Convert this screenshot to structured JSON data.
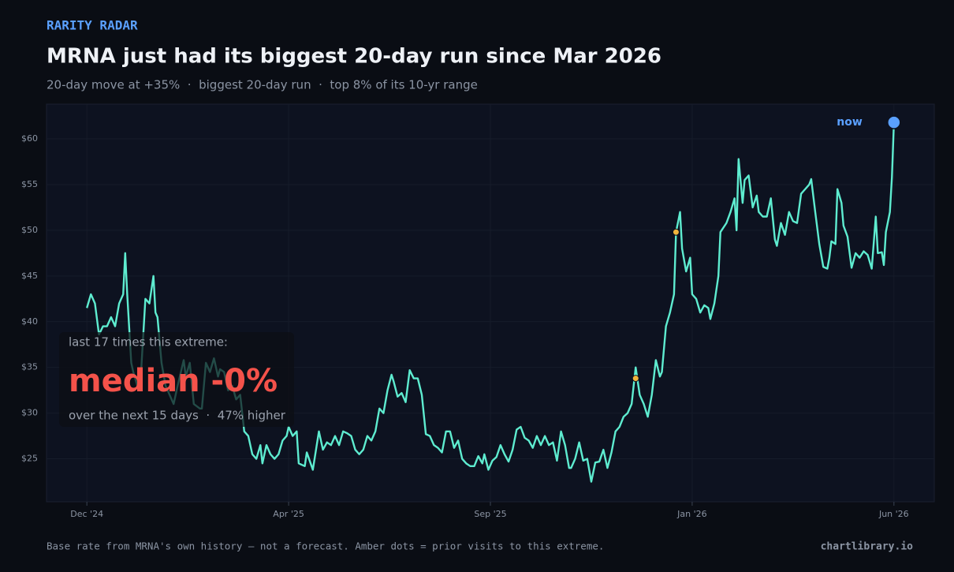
{
  "header": {
    "eyebrow": "RARITY RADAR",
    "title": "MRNA just had its biggest 20-day run since Mar 2026",
    "subtitle": "20-day move at +35%  ·  biggest 20-day run  ·  top 8% of its 10-yr range"
  },
  "chart_data": {
    "type": "line",
    "color": "#5eecd0",
    "x": [
      0,
      2,
      4,
      6,
      8,
      10,
      12,
      14,
      16,
      18,
      19,
      20,
      22,
      23,
      25,
      27,
      29,
      31,
      33,
      34,
      35,
      37,
      39,
      41,
      43,
      45,
      48,
      49,
      51,
      53,
      56,
      57,
      59,
      61,
      63,
      65,
      66,
      68,
      70,
      72,
      74,
      76,
      78,
      80,
      82,
      84,
      86,
      87,
      89,
      91,
      93,
      95,
      97,
      99,
      100,
      102,
      104,
      105,
      108,
      109,
      112,
      115,
      117,
      119,
      121,
      123,
      125,
      127,
      129,
      131,
      133,
      135,
      137,
      139,
      141,
      143,
      145,
      147,
      149,
      151,
      152,
      154,
      156,
      158,
      160,
      162,
      164,
      166,
      168,
      170,
      172,
      174,
      176,
      178,
      180,
      182,
      184,
      186,
      188,
      190,
      192,
      194,
      196,
      197,
      199,
      201,
      203,
      205,
      207,
      209,
      211,
      213,
      215,
      217,
      219,
      221,
      223,
      225,
      227,
      229,
      231,
      233,
      235,
      237,
      239,
      240,
      242,
      244,
      246,
      248,
      250,
      252,
      254,
      256,
      258,
      260,
      262,
      264,
      266,
      268,
      270,
      272,
      274,
      276,
      278,
      280,
      282,
      284,
      285,
      287,
      289,
      291,
      292,
      294,
      295,
      297,
      299,
      300,
      302,
      304,
      306,
      308,
      309,
      311,
      313,
      314,
      317,
      319,
      321,
      322,
      323,
      325,
      326,
      328,
      330,
      332,
      333,
      335,
      337,
      339,
      341,
      342,
      344,
      346,
      348,
      350,
      352,
      354,
      356,
      358,
      359,
      361,
      363,
      365,
      367,
      368,
      369,
      371,
      372,
      374,
      375,
      377,
      379,
      381,
      383,
      385,
      387,
      389,
      391,
      392,
      394,
      395,
      396,
      398,
      399,
      400
    ],
    "values": [
      41.5,
      43,
      42,
      38.6,
      39.5,
      39.5,
      40.5,
      39.5,
      42,
      43,
      47.5,
      43,
      35.5,
      34.5,
      33,
      35,
      42.5,
      42,
      45,
      41,
      40.5,
      35.5,
      33,
      32,
      31,
      33,
      35.8,
      34,
      35.5,
      31,
      30.5,
      30.5,
      35.5,
      34.5,
      36,
      34,
      34.8,
      34.5,
      32.5,
      33,
      31.5,
      32,
      28,
      27.5,
      25.5,
      25,
      26.5,
      24.5,
      26.5,
      25.5,
      25,
      25.5,
      27,
      27.5,
      28.5,
      27.5,
      28,
      24.5,
      24.2,
      25.7,
      23.8,
      28,
      26,
      26.8,
      26.5,
      27.5,
      26.5,
      28,
      27.8,
      27.5,
      26,
      25.5,
      26,
      27.5,
      27,
      28,
      30.5,
      30,
      32.5,
      34.2,
      33.5,
      31.8,
      32.2,
      31.2,
      34.7,
      33.8,
      33.8,
      32,
      27.7,
      27.5,
      26.5,
      26.2,
      25.7,
      28,
      28,
      26.2,
      27,
      25,
      24.5,
      24.2,
      24.2,
      25.3,
      24.5,
      25.5,
      23.8,
      24.8,
      25.2,
      26.5,
      25.5,
      24.7,
      26,
      28.2,
      28.5,
      27.3,
      27,
      26.2,
      27.5,
      26.5,
      27.5,
      26.5,
      26.8,
      24.8,
      28,
      26.5,
      24,
      24,
      25,
      26.8,
      24.8,
      25,
      22.5,
      24.6,
      24.7,
      26,
      24,
      25.7,
      28,
      28.5,
      29.6,
      30,
      31,
      35,
      32,
      31,
      29.6,
      32,
      35.8,
      34,
      34.5,
      39.5,
      41,
      43,
      49.8,
      52,
      48,
      45.5,
      47,
      43,
      42.5,
      41,
      41.8,
      41.5,
      40.3,
      42,
      45,
      49.8,
      50.8,
      52,
      53.5,
      50,
      57.8,
      53,
      55.5,
      56,
      52.5,
      53.8,
      52,
      51.5,
      51.5,
      53.5,
      49,
      48.3,
      50.8,
      49.5,
      52,
      51,
      50.8,
      54,
      54.5,
      55,
      55.6,
      52,
      48.5,
      46,
      45.8,
      47,
      48.8,
      48.5,
      54.5,
      53,
      50.5,
      49.3,
      45.9,
      47.5,
      47,
      47.7,
      47.3,
      45.8,
      51.5,
      47.5,
      47.6,
      46.2,
      49.8,
      52,
      55.8,
      61.8
    ],
    "markers": {
      "x": [
        272,
        292
      ],
      "values": [
        33.8,
        49.8
      ],
      "color": "#f0b43c"
    },
    "now": {
      "label": "now",
      "color": "#5aa0ff"
    },
    "xlim": [
      -20,
      420
    ],
    "xticks": [
      {
        "value": 0,
        "label": "Dec '24"
      },
      {
        "value": 100,
        "label": "Apr '25"
      },
      {
        "value": 200,
        "label": "Sep '25"
      },
      {
        "value": 300,
        "label": "Jan '26"
      },
      {
        "value": 400,
        "label": "Jun '26"
      }
    ],
    "ylim": [
      20.3,
      63.8
    ],
    "yticks": [
      {
        "value": 25,
        "label": "$25"
      },
      {
        "value": 30,
        "label": "$30"
      },
      {
        "value": 35,
        "label": "$35"
      },
      {
        "value": 40,
        "label": "$40"
      },
      {
        "value": 45,
        "label": "$45"
      },
      {
        "value": 50,
        "label": "$50"
      },
      {
        "value": 55,
        "label": "$55"
      },
      {
        "value": 60,
        "label": "$60"
      }
    ],
    "grid": true
  },
  "callout": {
    "lead": "last 17 times this extreme:",
    "headline": "median -0%",
    "detail": "over the next 15 days  ·  47% higher"
  },
  "footer": {
    "note": "Base rate from MRNA's own history — not a forecast. Amber dots = prior visits to this extreme.",
    "brand": "chartlibrary.io"
  }
}
